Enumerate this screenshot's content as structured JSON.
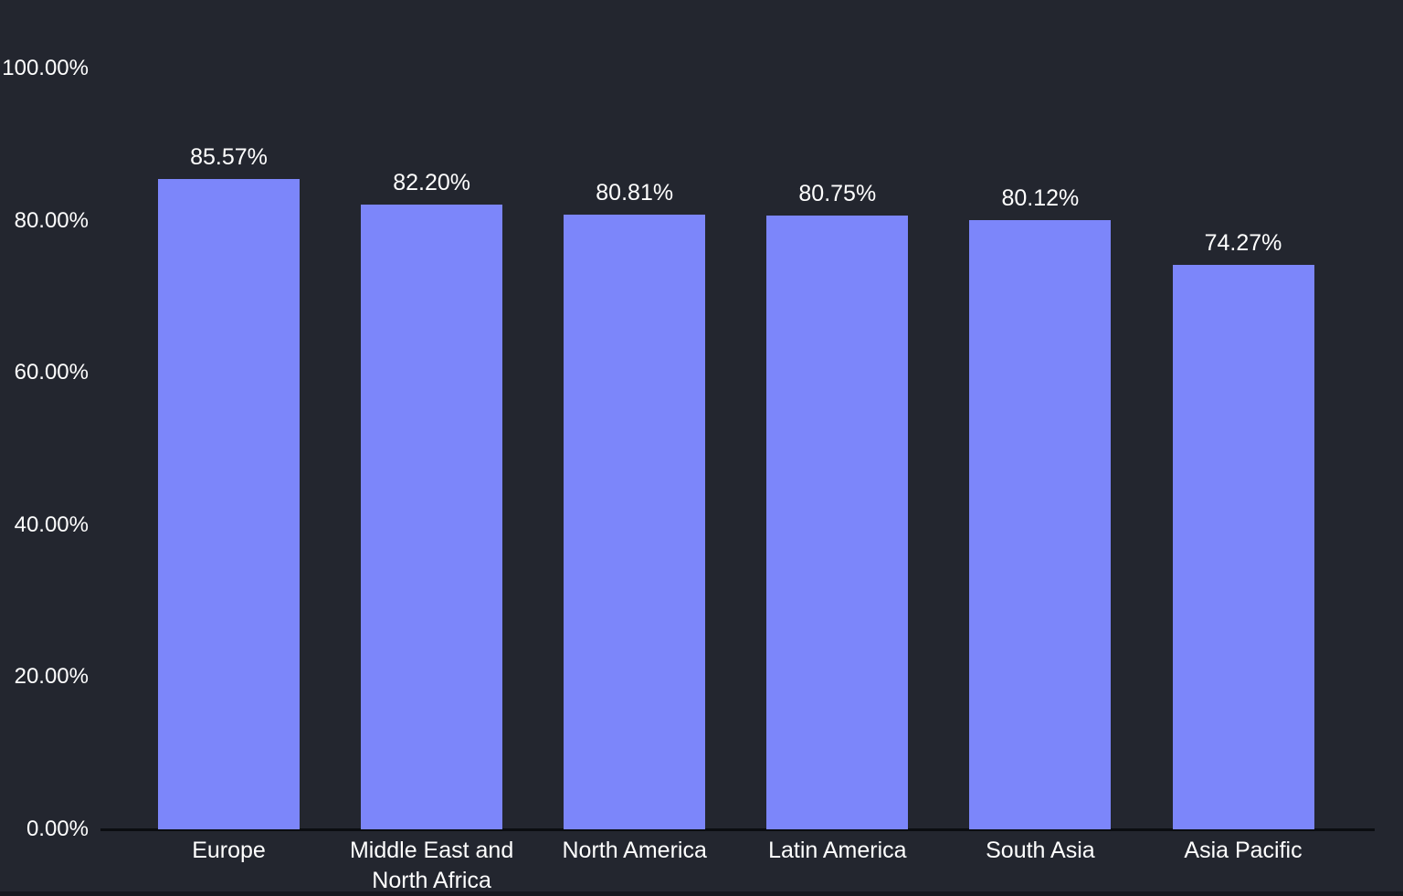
{
  "chart_data": {
    "type": "bar",
    "title": "",
    "xlabel": "",
    "ylabel": "",
    "categories": [
      "Europe",
      "Middle East and North Africa",
      "North America",
      "Latin America",
      "South Asia",
      "Asia Pacific"
    ],
    "values": [
      85.57,
      82.2,
      80.81,
      80.75,
      80.12,
      74.27
    ],
    "value_labels": [
      "85.57%",
      "82.20%",
      "80.81%",
      "80.75%",
      "80.12%",
      "74.27%"
    ],
    "y_tick_values": [
      0,
      20,
      40,
      60,
      80,
      100
    ],
    "y_tick_labels": [
      "0.00%",
      "20.00%",
      "40.00%",
      "60.00%",
      "80.00%",
      "100.00%"
    ],
    "ylim": [
      0,
      100
    ],
    "grid": false,
    "legend": false,
    "colors": {
      "bar": "#7C86FA",
      "background": "#23262F",
      "text": "#FFFFFF",
      "axis_line": "#0B0D11"
    }
  }
}
